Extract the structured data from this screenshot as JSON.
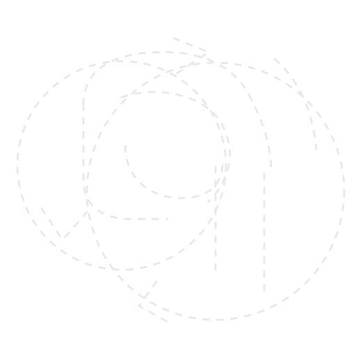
{
  "canvas": {
    "background": "#ffffff",
    "stroke_color": "#e9e9e9",
    "style": "dashed-outline"
  },
  "artwork": {
    "icon": "recycle-arrows-icon",
    "text": ""
  }
}
